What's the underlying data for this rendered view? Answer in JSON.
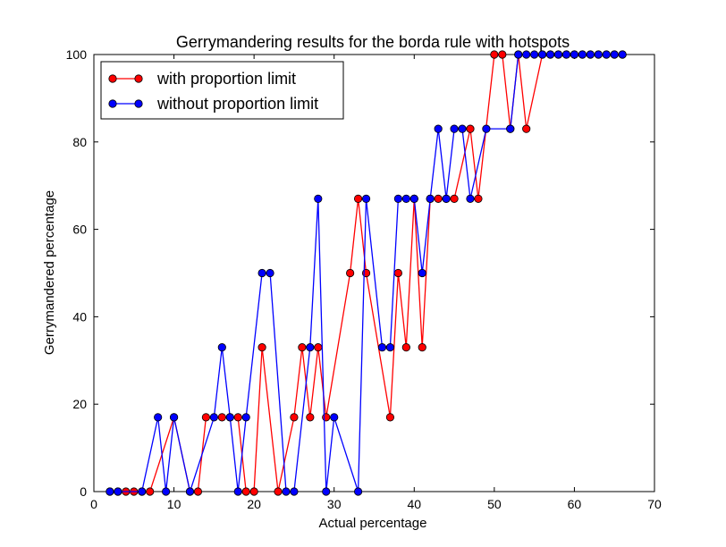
{
  "chart_data": {
    "type": "line",
    "title": "Gerrymandering results for the borda rule with hotspots",
    "xlabel": "Actual percentage",
    "ylabel": "Gerrymandered percentage",
    "xlim": [
      0,
      70
    ],
    "ylim": [
      0,
      100
    ],
    "xticks": [
      0,
      10,
      20,
      30,
      40,
      50,
      60,
      70
    ],
    "yticks": [
      0,
      20,
      40,
      60,
      80,
      100
    ],
    "grid": false,
    "legend_position": "top-left",
    "series": [
      {
        "name": "with proportion limit",
        "color": "#ff0000",
        "x": [
          2,
          3,
          4,
          5,
          6,
          7,
          10,
          12,
          13,
          14,
          16,
          17,
          18,
          19,
          20,
          21,
          23,
          25,
          26,
          27,
          28,
          29,
          32,
          33,
          34,
          37,
          38,
          39,
          40,
          41,
          42,
          43,
          44,
          45,
          47,
          48,
          50,
          51,
          52,
          53,
          54,
          56,
          57,
          58,
          59,
          60,
          61,
          62,
          63,
          64,
          65,
          66
        ],
        "y": [
          0,
          0,
          0,
          0,
          0,
          0,
          17,
          0,
          0,
          17,
          17,
          17,
          17,
          0,
          0,
          33,
          0,
          17,
          33,
          17,
          33,
          17,
          50,
          67,
          50,
          17,
          50,
          33,
          67,
          33,
          67,
          67,
          67,
          67,
          83,
          67,
          100,
          100,
          83,
          100,
          83,
          100,
          100,
          100,
          100,
          100,
          100,
          100,
          100,
          100,
          100,
          100
        ]
      },
      {
        "name": "without proportion limit",
        "color": "#0000ff",
        "x": [
          2,
          3,
          6,
          8,
          9,
          10,
          12,
          15,
          16,
          17,
          18,
          19,
          21,
          22,
          24,
          25,
          27,
          28,
          29,
          30,
          33,
          34,
          36,
          37,
          38,
          39,
          40,
          41,
          42,
          43,
          44,
          45,
          46,
          47,
          49,
          52,
          53,
          54,
          55,
          56,
          57,
          58,
          59,
          60,
          61,
          62,
          63,
          64,
          65,
          66
        ],
        "y": [
          0,
          0,
          0,
          17,
          0,
          17,
          0,
          17,
          33,
          17,
          0,
          17,
          50,
          50,
          0,
          0,
          33,
          67,
          0,
          17,
          0,
          67,
          33,
          33,
          67,
          67,
          67,
          50,
          67,
          83,
          67,
          83,
          83,
          67,
          83,
          83,
          100,
          100,
          100,
          100,
          100,
          100,
          100,
          100,
          100,
          100,
          100,
          100,
          100,
          100
        ]
      }
    ]
  }
}
